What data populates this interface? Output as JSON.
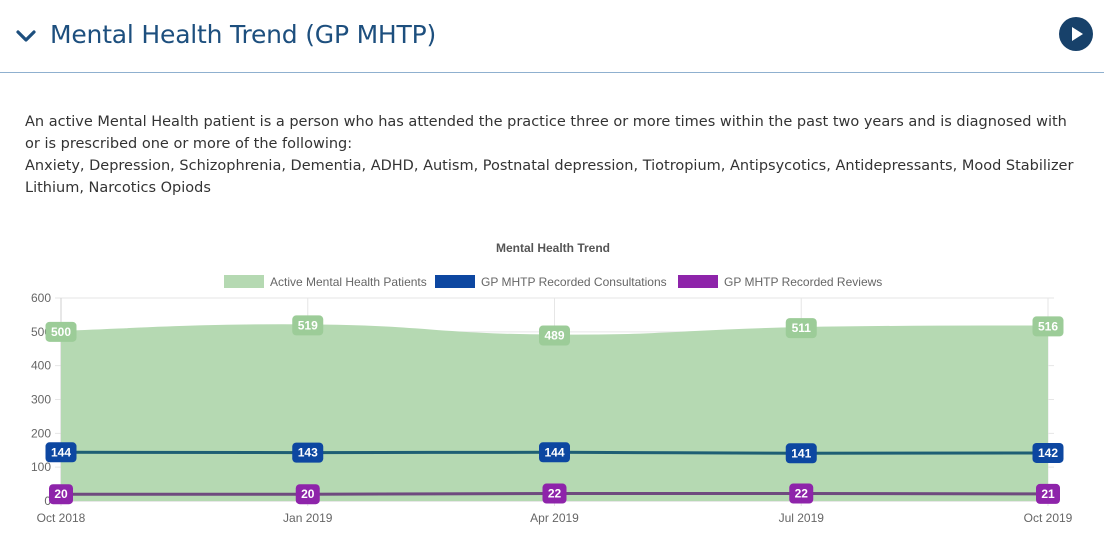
{
  "header": {
    "title": "Mental Health Trend (GP MHTP)",
    "collapse_icon": "chevron-down-icon",
    "play_icon": "play-icon"
  },
  "description": {
    "line1": "An active Mental Health patient is a person who has attended the practice three or more times within the past two years and is diagnosed with or is prescribed one or more of the following:",
    "line2": "Anxiety, Depression, Schizophrenia, Dementia, ADHD, Autism, Postnatal depression, Tiotropium, Antipsycotics, Antidepressants, Mood Stabilizer Lithium, Narcotics Opiods"
  },
  "colors": {
    "header_text": "#1d4f7e",
    "play_button": "#17416a",
    "header_border": "#8fb0cf"
  },
  "chart_data": {
    "type": "line",
    "title": "Mental Health Trend",
    "legend_position": "top",
    "grid": true,
    "ylim": [
      0,
      600
    ],
    "yticks": [
      0,
      100,
      200,
      300,
      400,
      500,
      600
    ],
    "categories": [
      "Oct 2018",
      "Jan 2019",
      "Apr 2019",
      "Jul 2019",
      "Oct 2019"
    ],
    "series": [
      {
        "name": "Active Mental Health Patients",
        "style": "area",
        "fill": "#b5d9b2",
        "line": "#b5d9b2",
        "label_bg": "#9ccc98",
        "values": [
          500,
          519,
          489,
          511,
          516
        ]
      },
      {
        "name": "GP MHTP Recorded Consultations",
        "style": "line",
        "line": "#1e5f74",
        "legend_color": "#0d47a1",
        "label_bg": "#0d47a1",
        "values": [
          144,
          143,
          144,
          141,
          142
        ]
      },
      {
        "name": "GP MHTP Recorded Reviews",
        "style": "line",
        "line": "#6e4a7e",
        "legend_color": "#8e24aa",
        "label_bg": "#8e24aa",
        "values": [
          20,
          20,
          22,
          22,
          21
        ]
      }
    ]
  }
}
